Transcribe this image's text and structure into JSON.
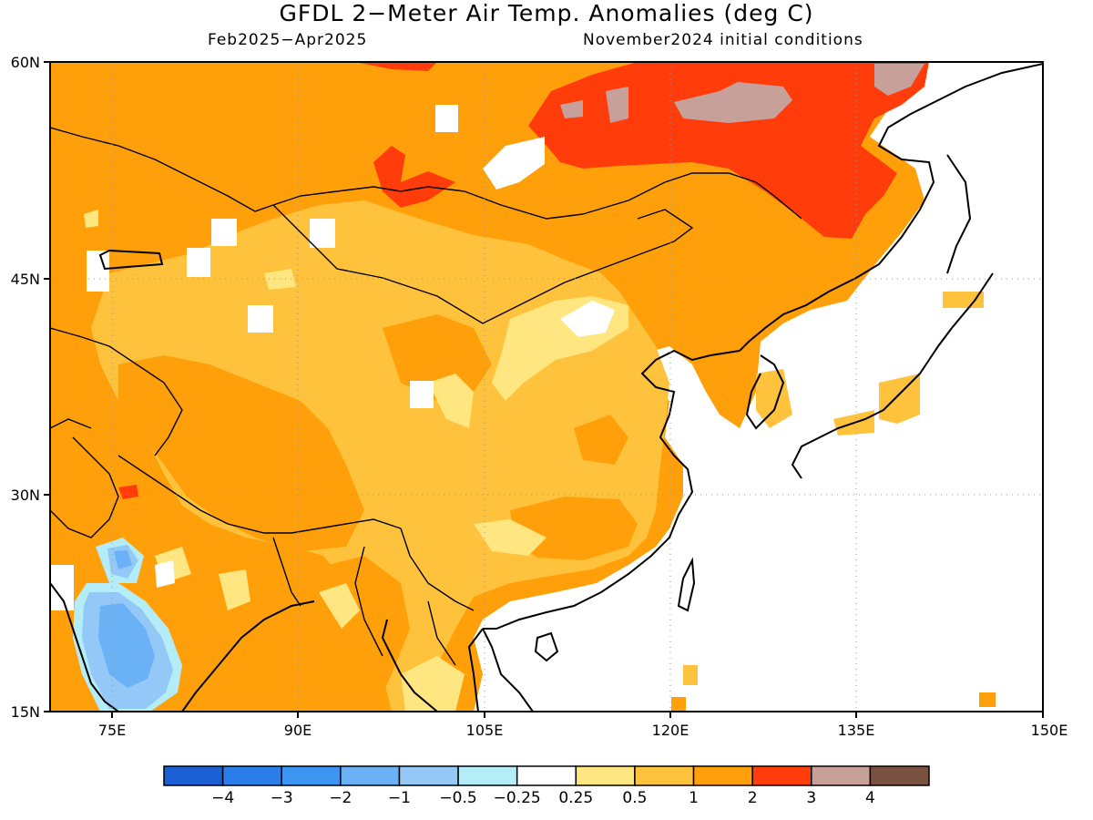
{
  "header": {
    "title": "GFDL 2−Meter Air Temp. Anomalies (deg C)",
    "period": "Feb2025−Apr2025",
    "initial_conditions": "November2024 initial conditions"
  },
  "map": {
    "lon_range": [
      70,
      150
    ],
    "lat_range": [
      15,
      60
    ],
    "x_ticks": [
      "75E",
      "90E",
      "105E",
      "120E",
      "135E",
      "150E"
    ],
    "y_ticks": [
      "60N",
      "45N",
      "30N",
      "15N"
    ]
  },
  "colorbar": {
    "colors": [
      "#1a5fd4",
      "#2b7de9",
      "#3d95f2",
      "#6ab2f5",
      "#93c8f7",
      "#b4ecf8",
      "#ffffff",
      "#ffe680",
      "#ffc23c",
      "#ff9f0a",
      "#ff3c0a",
      "#c8a09a",
      "#7a5040"
    ],
    "labels": [
      "−4",
      "−3",
      "−2",
      "−1",
      "−0.5",
      "−0.25",
      "0.25",
      "0.5",
      "1",
      "2",
      "3",
      "4"
    ]
  }
}
